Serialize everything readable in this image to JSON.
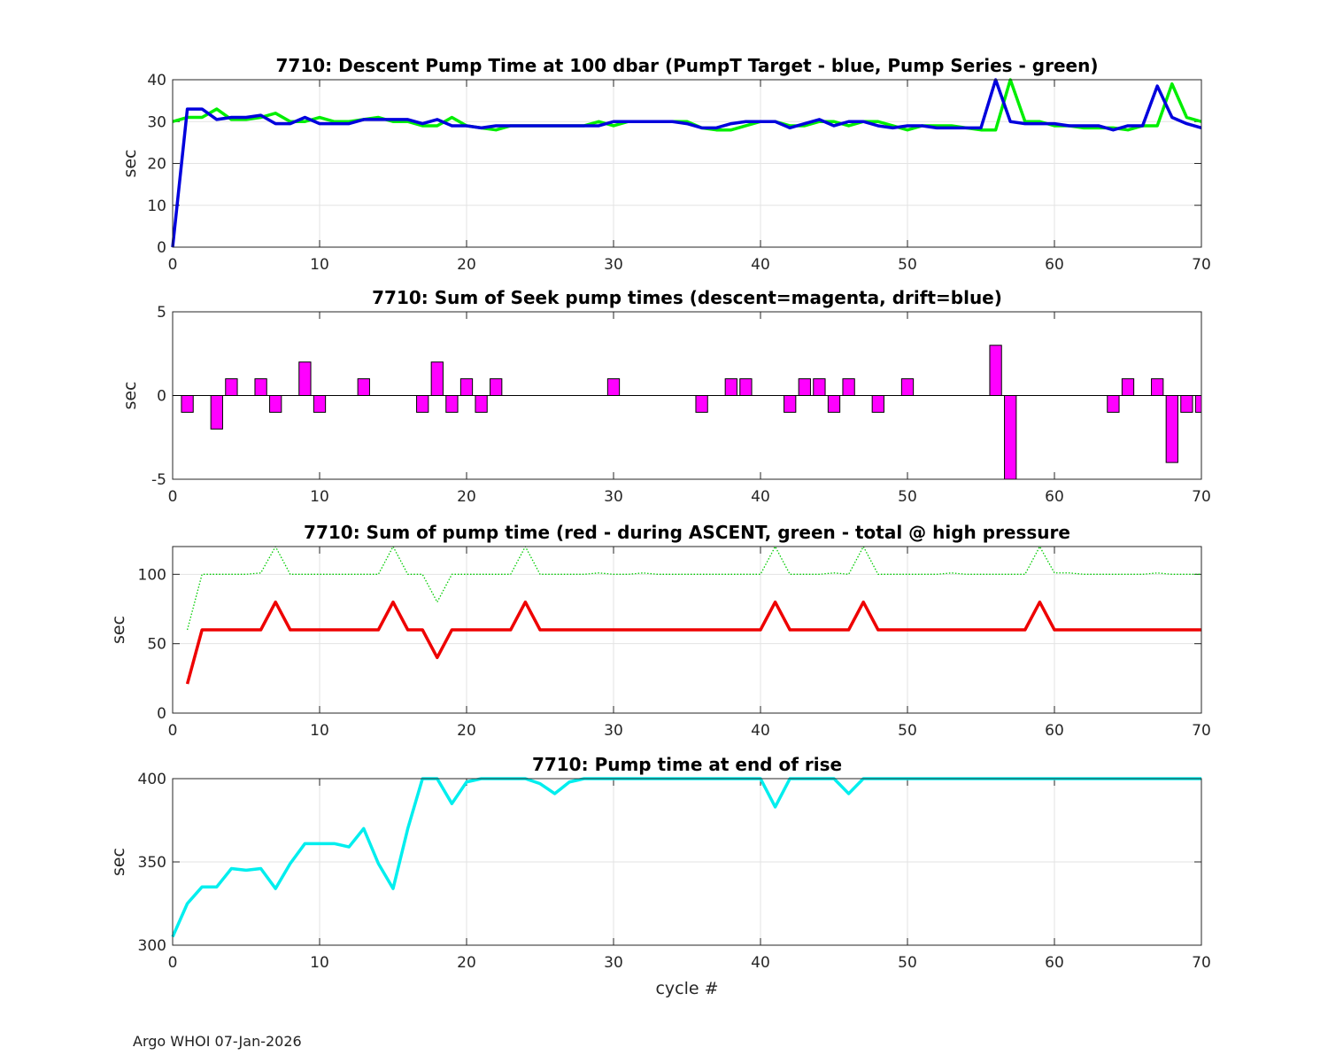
{
  "footer": "Argo WHOI 07-Jan-2026",
  "chart_data": [
    {
      "type": "line",
      "title": "7710: Descent Pump Time at 100 dbar (PumpT Target - blue, Pump Series - green)",
      "xlabel": "",
      "ylabel": "sec",
      "xlim": [
        0,
        70
      ],
      "ylim": [
        0,
        40
      ],
      "xticks": [
        0,
        10,
        20,
        30,
        40,
        50,
        60,
        70
      ],
      "yticks": [
        0,
        10,
        20,
        30,
        40
      ],
      "grid": true,
      "series": [
        {
          "color": "#00ee00",
          "style": "solid",
          "x": [
            0,
            1,
            2,
            3,
            4,
            5,
            6,
            7,
            8,
            9,
            10,
            11,
            12,
            13,
            14,
            15,
            16,
            17,
            18,
            19,
            20,
            21,
            22,
            23,
            24,
            25,
            26,
            27,
            28,
            29,
            30,
            31,
            32,
            33,
            34,
            35,
            36,
            37,
            38,
            39,
            40,
            41,
            42,
            43,
            44,
            45,
            46,
            47,
            48,
            49,
            50,
            51,
            52,
            53,
            54,
            55,
            56,
            57,
            58,
            59,
            60,
            61,
            62,
            63,
            64,
            65,
            66,
            67,
            68,
            69,
            70
          ],
          "values": [
            30,
            31,
            31,
            33,
            30.5,
            30.5,
            31,
            32,
            30,
            30,
            31,
            30,
            30,
            30.5,
            31,
            30,
            30,
            29,
            29,
            31,
            29,
            28.5,
            28,
            29,
            29,
            29,
            29,
            29,
            29,
            30,
            29,
            30,
            30,
            30,
            30,
            30,
            28.5,
            28,
            28,
            29,
            30,
            30,
            29,
            29,
            30,
            30,
            29,
            30,
            30,
            29,
            28,
            29,
            29,
            29,
            28.5,
            28,
            28,
            40,
            30,
            30,
            29,
            29,
            28.5,
            28.5,
            28.5,
            28,
            29,
            29,
            39,
            31,
            30
          ]
        },
        {
          "color": "#0000dd",
          "style": "solid",
          "x": [
            0,
            1,
            2,
            3,
            4,
            5,
            6,
            7,
            8,
            9,
            10,
            11,
            12,
            13,
            14,
            15,
            16,
            17,
            18,
            19,
            20,
            21,
            22,
            23,
            24,
            25,
            26,
            27,
            28,
            29,
            30,
            31,
            32,
            33,
            34,
            35,
            36,
            37,
            38,
            39,
            40,
            41,
            42,
            43,
            44,
            45,
            46,
            47,
            48,
            49,
            50,
            51,
            52,
            53,
            54,
            55,
            56,
            57,
            58,
            59,
            60,
            61,
            62,
            63,
            64,
            65,
            66,
            67,
            68,
            69,
            70
          ],
          "values": [
            0,
            33,
            33,
            30.5,
            31,
            31,
            31.5,
            29.5,
            29.5,
            31,
            29.5,
            29.5,
            29.5,
            30.5,
            30.5,
            30.5,
            30.5,
            29.5,
            30.5,
            29,
            29,
            28.5,
            29,
            29,
            29,
            29,
            29,
            29,
            29,
            29,
            30,
            30,
            30,
            30,
            30,
            29.5,
            28.5,
            28.5,
            29.5,
            30,
            30,
            30,
            28.5,
            29.5,
            30.5,
            29,
            30,
            30,
            29,
            28.5,
            29,
            29,
            28.5,
            28.5,
            28.5,
            28.5,
            40,
            30,
            29.5,
            29.5,
            29.5,
            29,
            29,
            29,
            28,
            29,
            29,
            38.5,
            31,
            29.5,
            28.5
          ]
        }
      ]
    },
    {
      "type": "bar",
      "title": "7710: Sum of Seek pump times (descent=magenta, drift=blue)",
      "xlabel": "",
      "ylabel": "sec",
      "xlim": [
        0,
        70
      ],
      "ylim": [
        -5,
        5
      ],
      "xticks": [
        0,
        10,
        20,
        30,
        40,
        50,
        60,
        70
      ],
      "yticks": [
        -5,
        0,
        5
      ],
      "grid": false,
      "color": "#ff00ff",
      "x": [
        1,
        3,
        4,
        6,
        7,
        9,
        10,
        13,
        17,
        18,
        19,
        20,
        21,
        22,
        30,
        36,
        38,
        39,
        42,
        43,
        44,
        45,
        46,
        48,
        50,
        56,
        57,
        64,
        65,
        67,
        68,
        69,
        70
      ],
      "values": [
        -1,
        -2,
        1,
        1,
        -1,
        2,
        -1,
        1,
        -1,
        2,
        -1,
        1,
        -1,
        1,
        1,
        -1,
        1,
        1,
        -1,
        1,
        1,
        -1,
        1,
        -1,
        1,
        3,
        -5,
        -1,
        1,
        1,
        -4,
        -1,
        -1
      ]
    },
    {
      "type": "line",
      "title": "7710: Sum of pump time (red - during ASCENT, green - total @ high pressure",
      "xlabel": "",
      "ylabel": "sec",
      "xlim": [
        0,
        70
      ],
      "ylim": [
        0,
        120
      ],
      "xticks": [
        0,
        10,
        20,
        30,
        40,
        50,
        60,
        70
      ],
      "yticks": [
        0,
        50,
        100
      ],
      "grid": true,
      "series": [
        {
          "color": "#00cc00",
          "style": "dotted",
          "x": [
            1,
            2,
            3,
            4,
            5,
            6,
            7,
            8,
            9,
            10,
            11,
            12,
            13,
            14,
            15,
            16,
            17,
            18,
            19,
            20,
            21,
            22,
            23,
            24,
            25,
            26,
            27,
            28,
            29,
            30,
            31,
            32,
            33,
            34,
            35,
            36,
            37,
            38,
            39,
            40,
            41,
            42,
            43,
            44,
            45,
            46,
            47,
            48,
            49,
            50,
            51,
            52,
            53,
            54,
            55,
            56,
            57,
            58,
            59,
            60,
            61,
            62,
            63,
            64,
            65,
            66,
            67,
            68,
            69,
            70
          ],
          "values": [
            60,
            100,
            100,
            100,
            100,
            101,
            120,
            100,
            100,
            100,
            100,
            100,
            100,
            100,
            120,
            100,
            100,
            80,
            100,
            100,
            100,
            100,
            100,
            120,
            100,
            100,
            100,
            100,
            101,
            100,
            100,
            101,
            100,
            100,
            100,
            100,
            100,
            100,
            100,
            100,
            120,
            100,
            100,
            100,
            101,
            100,
            120,
            100,
            100,
            100,
            100,
            100,
            101,
            100,
            100,
            100,
            100,
            100,
            120,
            101,
            101,
            100,
            100,
            100,
            100,
            100,
            101,
            100,
            100,
            100
          ]
        },
        {
          "color": "#ee0000",
          "style": "solid",
          "x": [
            1,
            2,
            3,
            4,
            5,
            6,
            7,
            8,
            9,
            10,
            11,
            12,
            13,
            14,
            15,
            16,
            17,
            18,
            19,
            20,
            21,
            22,
            23,
            24,
            25,
            26,
            27,
            28,
            29,
            30,
            31,
            32,
            33,
            34,
            35,
            36,
            37,
            38,
            39,
            40,
            41,
            42,
            43,
            44,
            45,
            46,
            47,
            48,
            49,
            50,
            51,
            52,
            53,
            54,
            55,
            56,
            57,
            58,
            59,
            60,
            61,
            62,
            63,
            64,
            65,
            66,
            67,
            68,
            69,
            70
          ],
          "values": [
            21,
            60,
            60,
            60,
            60,
            60,
            80,
            60,
            60,
            60,
            60,
            60,
            60,
            60,
            80,
            60,
            60,
            40,
            60,
            60,
            60,
            60,
            60,
            80,
            60,
            60,
            60,
            60,
            60,
            60,
            60,
            60,
            60,
            60,
            60,
            60,
            60,
            60,
            60,
            60,
            80,
            60,
            60,
            60,
            60,
            60,
            80,
            60,
            60,
            60,
            60,
            60,
            60,
            60,
            60,
            60,
            60,
            60,
            80,
            60,
            60,
            60,
            60,
            60,
            60,
            60,
            60,
            60,
            60,
            60
          ]
        }
      ]
    },
    {
      "type": "line",
      "title": "7710: Pump time at end of rise",
      "xlabel": "cycle #",
      "ylabel": "sec",
      "xlim": [
        0,
        70
      ],
      "ylim": [
        300,
        400
      ],
      "xticks": [
        0,
        10,
        20,
        30,
        40,
        50,
        60,
        70
      ],
      "yticks": [
        300,
        350,
        400
      ],
      "grid": true,
      "series": [
        {
          "color": "#00eeee",
          "style": "solid",
          "x": [
            0,
            1,
            2,
            3,
            4,
            5,
            6,
            7,
            8,
            9,
            10,
            11,
            12,
            13,
            14,
            15,
            16,
            17,
            18,
            19,
            20,
            21,
            22,
            23,
            24,
            25,
            26,
            27,
            28,
            29,
            30,
            31,
            32,
            33,
            34,
            35,
            36,
            37,
            38,
            39,
            40,
            41,
            42,
            43,
            44,
            45,
            46,
            47,
            48,
            49,
            50,
            51,
            52,
            53,
            54,
            55,
            56,
            57,
            58,
            59,
            60,
            61,
            62,
            63,
            64,
            65,
            66,
            67,
            68,
            69,
            70
          ],
          "values": [
            305,
            325,
            335,
            335,
            346,
            345,
            346,
            334,
            349,
            361,
            361,
            361,
            359,
            370,
            349,
            334,
            370,
            400,
            400,
            385,
            398,
            400,
            400,
            400,
            400,
            397,
            391,
            398,
            400,
            400,
            400,
            400,
            400,
            400,
            400,
            400,
            400,
            400,
            400,
            400,
            400,
            383,
            400,
            400,
            400,
            400,
            391,
            400,
            400,
            400,
            400,
            400,
            400,
            400,
            400,
            400,
            400,
            400,
            400,
            400,
            400,
            400,
            400,
            400,
            400,
            400,
            400,
            400,
            400,
            400,
            400
          ]
        }
      ]
    }
  ]
}
